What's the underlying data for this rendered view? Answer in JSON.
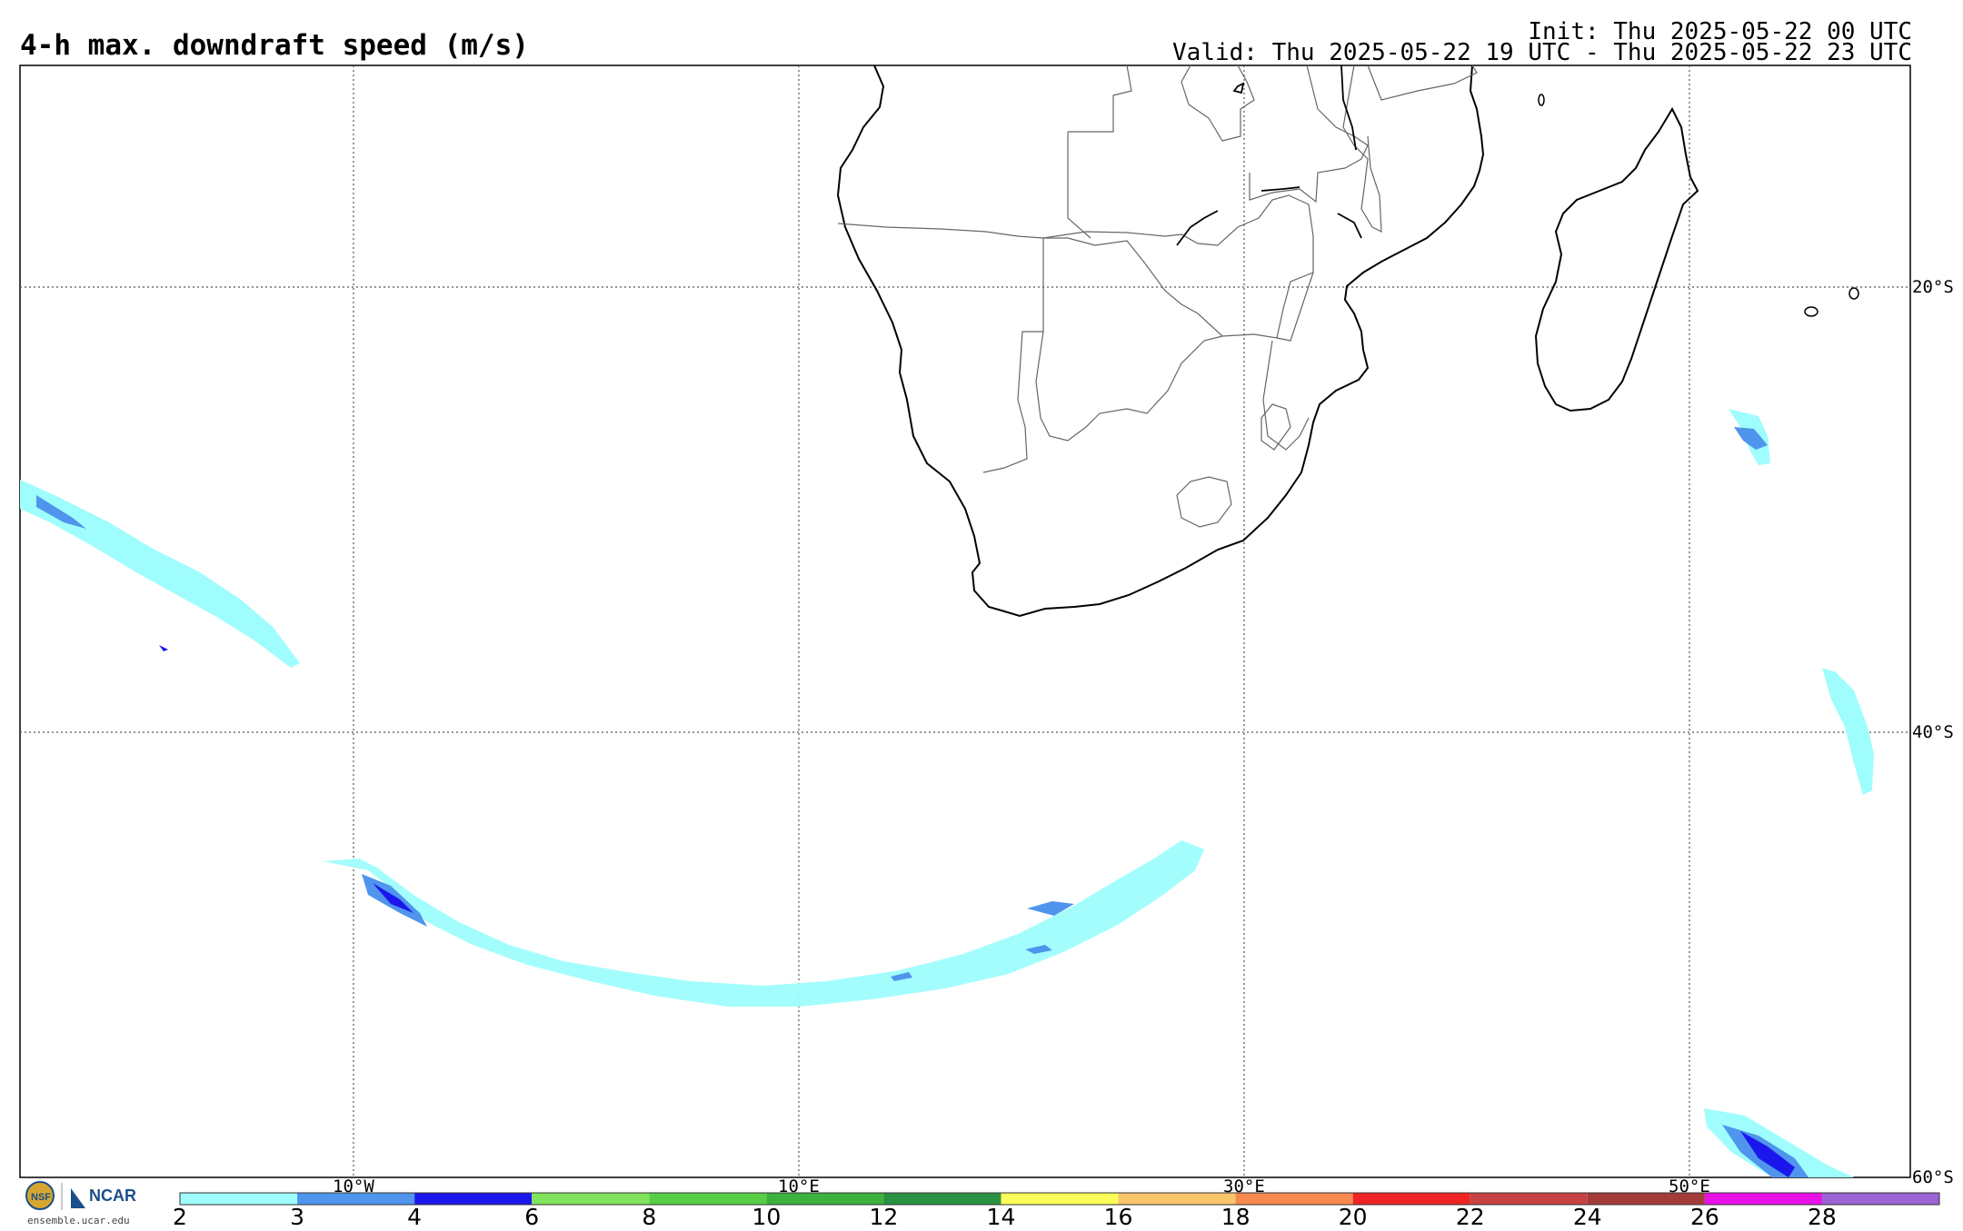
{
  "header": {
    "title": "4-h max. downdraft speed (m/s)",
    "init": "Init: Thu 2025-05-22 00 UTC",
    "valid": "Valid: Thu 2025-05-22 19 UTC - Thu 2025-05-22 23 UTC"
  },
  "map": {
    "lat_labels": [
      "20°S",
      "40°S",
      "60°S"
    ],
    "lon_labels": [
      "10°W",
      "10°E",
      "30°E",
      "50°E"
    ]
  },
  "colorbar": {
    "ticks": [
      "2",
      "3",
      "4",
      "6",
      "8",
      "10",
      "12",
      "14",
      "16",
      "18",
      "20",
      "22",
      "24",
      "26",
      "28"
    ],
    "colors": [
      "#9ffdfd",
      "#4f95ed",
      "#1b16ec",
      "#7fe35b",
      "#56cf46",
      "#3cb23c",
      "#299242",
      "#fdfd5a",
      "#fbc56a",
      "#f98a4f",
      "#ef2323",
      "#c74343",
      "#a33b3b",
      "#e812e8",
      "#9b63d3"
    ]
  },
  "footer": {
    "logo_text": "NCAR",
    "url": "ensemble.ucar.edu"
  }
}
